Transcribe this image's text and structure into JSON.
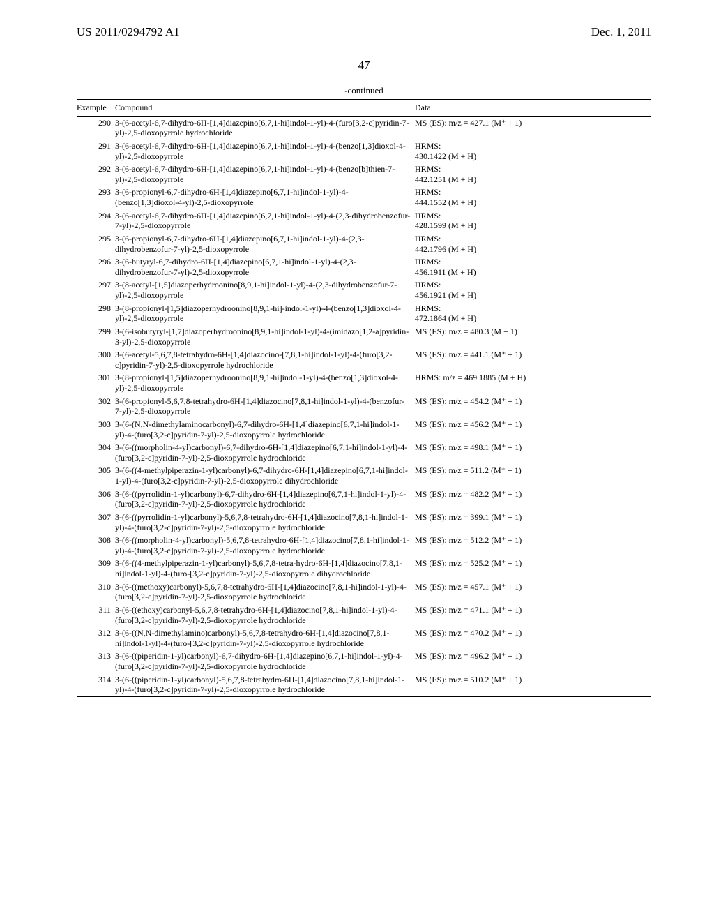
{
  "header": {
    "left": "US 2011/0294792 A1",
    "right": "Dec. 1, 2011"
  },
  "page_number": "47",
  "continued_label": "-continued",
  "columns": {
    "example": "Example",
    "compound": "Compound",
    "data": "Data"
  },
  "rows": [
    {
      "ex": "290",
      "compound": "3-(6-acetyl-6,7-dihydro-6H-[1,4]diazepino[6,7,1-hi]indol-1-yl)-4-(furo[3,2-c]pyridin-7-yl)-2,5-dioxopyrrole hydrochloride",
      "data": "MS (ES): m/z = 427.1 (M⁺ + 1)"
    },
    {
      "ex": "291",
      "compound": "3-(6-acetyl-6,7-dihydro-6H-[1,4]diazepino[6,7,1-hi]indol-1-yl)-4-(benzo[1,3]dioxol-4-yl)-2,5-dioxopyrrole",
      "data": "HRMS:\n430.1422 (M + H)"
    },
    {
      "ex": "292",
      "compound": "3-(6-acetyl-6,7-dihydro-6H-[1,4]diazepino[6,7,1-hi]indol-1-yl)-4-(benzo[b]thien-7-yl)-2,5-dioxopyrrole",
      "data": "HRMS:\n442.1251 (M + H)"
    },
    {
      "ex": "293",
      "compound": "3-(6-propionyl-6,7-dihydro-6H-[1,4]diazepino[6,7,1-hi]indol-1-yl)-4-(benzo[1,3]dioxol-4-yl)-2,5-dioxopyrrole",
      "data": "HRMS:\n444.1552 (M + H)"
    },
    {
      "ex": "294",
      "compound": "3-(6-acetyl-6,7-dihydro-6H-[1,4]diazepino[6,7,1-hi]indol-1-yl)-4-(2,3-dihydrobenzofur-7-yl)-2,5-dioxopyrrole",
      "data": "HRMS:\n428.1599 (M + H)"
    },
    {
      "ex": "295",
      "compound": "3-(6-propionyl-6,7-dihydro-6H-[1,4]diazepino[6,7,1-hi]indol-1-yl)-4-(2,3-dihydrobenzofur-7-yl)-2,5-dioxopyrrole",
      "data": "HRMS:\n442.1796 (M + H)"
    },
    {
      "ex": "296",
      "compound": "3-(6-butyryl-6,7-dihydro-6H-[1,4]diazepino[6,7,1-hi]indol-1-yl)-4-(2,3-dihydrobenzofur-7-yl)-2,5-dioxopyrrole",
      "data": "HRMS:\n456.1911 (M + H)"
    },
    {
      "ex": "297",
      "compound": "3-(8-acetyl-[1,5]diazoperhydroonino[8,9,1-hi]indol-1-yl)-4-(2,3-dihydrobenzofur-7-yl)-2,5-dioxopyrrole",
      "data": "HRMS:\n456.1921 (M + H)"
    },
    {
      "ex": "298",
      "compound": "3-(8-propionyl-[1,5]diazoperhydroonino[8,9,1-hi]-indol-1-yl)-4-(benzo[1,3]dioxol-4-yl)-2,5-dioxopyrrole",
      "data": "HRMS:\n472.1864 (M + H)"
    },
    {
      "ex": "299",
      "compound": "3-(6-isobutyryl-[1,7]diazoperhydroonino[8,9,1-hi]indol-1-yl)-4-(imidazo[1,2-a]pyridin-3-yl)-2,5-dioxopyrrole",
      "data": "MS (ES): m/z = 480.3 (M + 1)"
    },
    {
      "ex": "300",
      "compound": "3-(6-acetyl-5,6,7,8-tetrahydro-6H-[1,4]diazocino-[7,8,1-hi]indol-1-yl)-4-(furo[3,2-c]pyridin-7-yl)-2,5-dioxopyrrole hydrochloride",
      "data": "MS (ES): m/z = 441.1 (M⁺ + 1)"
    },
    {
      "ex": "301",
      "compound": "3-(8-propionyl-[1,5]diazoperhydroonino[8,9,1-hi]indol-1-yl)-4-(benzo[1,3]dioxol-4-yl)-2,5-dioxopyrrole",
      "data": "HRMS: m/z = 469.1885 (M + H)"
    },
    {
      "ex": "302",
      "compound": "3-(6-propionyl-5,6,7,8-tetrahydro-6H-[1,4]diazocino[7,8,1-hi]indol-1-yl)-4-(benzofur-7-yl)-2,5-dioxopyrrole",
      "data": "MS (ES): m/z = 454.2 (M⁺ + 1)"
    },
    {
      "ex": "303",
      "compound": "3-(6-(N,N-dimethylaminocarbonyl)-6,7-dihydro-6H-[1,4]diazepino[6,7,1-hi]indol-1-yl)-4-(furo[3,2-c]pyridin-7-yl)-2,5-dioxopyrrole hydrochloride",
      "data": "MS (ES): m/z = 456.2 (M⁺ + 1)"
    },
    {
      "ex": "304",
      "compound": "3-(6-((morpholin-4-yl)carbonyl)-6,7-dihydro-6H-[1,4]diazepino[6,7,1-hi]indol-1-yl)-4-(furo[3,2-c]pyridin-7-yl)-2,5-dioxopyrrole hydrochloride",
      "data": "MS (ES): m/z = 498.1 (M⁺ + 1)"
    },
    {
      "ex": "305",
      "compound": "3-(6-((4-methylpiperazin-1-yl)carbonyl)-6,7-dihydro-6H-[1,4]diazepino[6,7,1-hi]indol-1-yl)-4-(furo[3,2-c]pyridin-7-yl)-2,5-dioxopyrrole dihydrochloride",
      "data": "MS (ES): m/z = 511.2 (M⁺ + 1)"
    },
    {
      "ex": "306",
      "compound": "3-(6-((pyrrolidin-1-yl)carbonyl)-6,7-dihydro-6H-[1,4]diazepino[6,7,1-hi]indol-1-yl)-4-(furo[3,2-c]pyridin-7-yl)-2,5-dioxopyrrole hydrochloride",
      "data": "MS (ES): m/z = 482.2 (M⁺ + 1)"
    },
    {
      "ex": "307",
      "compound": "3-(6-((pyrrolidin-1-yl)carbonyl)-5,6,7,8-tetrahydro-6H-[1,4]diazocino[7,8,1-hi]indol-1-yl)-4-(furo[3,2-c]pyridin-7-yl)-2,5-dioxopyrrole hydrochloride",
      "data": "MS (ES): m/z = 399.1 (M⁺ + 1)"
    },
    {
      "ex": "308",
      "compound": "3-(6-((morpholin-4-yl)carbonyl)-5,6,7,8-tetrahydro-6H-[1,4]diazocino[7,8,1-hi]indol-1-yl)-4-(furo[3,2-c]pyridin-7-yl)-2,5-dioxopyrrole hydrochloride",
      "data": "MS (ES): m/z = 512.2 (M⁺ + 1)"
    },
    {
      "ex": "309",
      "compound": "3-(6-((4-methylpiperazin-1-yl)carbonyl)-5,6,7,8-tetra-hydro-6H-[1,4]diazocino[7,8,1-hi]indol-1-yl)-4-(furo-[3,2-c]pyridin-7-yl)-2,5-dioxopyrrole dihydrochloride",
      "data": "MS (ES): m/z = 525.2 (M⁺ + 1)"
    },
    {
      "ex": "310",
      "compound": "3-(6-((methoxy)carbonyl)-5,6,7,8-tetrahydro-6H-[1,4]diazocino[7,8,1-hi]indol-1-yl)-4-(furo[3,2-c]pyridin-7-yl)-2,5-dioxopyrrole hydrochloride",
      "data": "MS (ES): m/z = 457.1 (M⁺ + 1)"
    },
    {
      "ex": "311",
      "compound": "3-(6-((ethoxy)carbonyl-5,6,7,8-tetrahydro-6H-[1,4]diazocino[7,8,1-hi]indol-1-yl)-4-(furo[3,2-c]pyridin-7-yl)-2,5-dioxopyrrole hydrochloride",
      "data": "MS (ES): m/z = 471.1 (M⁺ + 1)"
    },
    {
      "ex": "312",
      "compound": "3-(6-((N,N-dimethylamino)carbonyl)-5,6,7,8-tetrahydro-6H-[1,4]diazocino[7,8,1-hi]indol-1-yl)-4-(furo-[3,2-c]pyridin-7-yl)-2,5-dioxopyrrole hydrochloride",
      "data": "MS (ES): m/z = 470.2 (M⁺ + 1)"
    },
    {
      "ex": "313",
      "compound": "3-(6-((piperidin-1-yl)carbonyl)-6,7-dihydro-6H-[1,4]diazepino[6,7,1-hi]indol-1-yl)-4-(furo[3,2-c]pyridin-7-yl)-2,5-dioxopyrrole hydrochloride",
      "data": "MS (ES): m/z = 496.2 (M⁺ + 1)"
    },
    {
      "ex": "314",
      "compound": "3-(6-((piperidin-1-yl)carbonyl)-5,6,7,8-tetrahydro-6H-[1,4]diazocino[7,8,1-hi]indol-1-yl)-4-(furo[3,2-c]pyridin-7-yl)-2,5-dioxopyrrole hydrochloride",
      "data": "MS (ES): m/z = 510.2 (M⁺ + 1)"
    }
  ]
}
